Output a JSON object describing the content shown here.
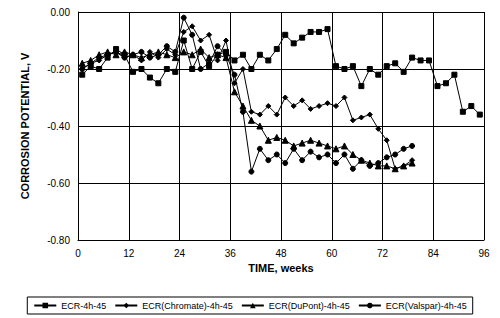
{
  "chart_data": {
    "type": "line",
    "x_label": "TIME, weeks",
    "y_label": "CORROSION POTENTIAL, V",
    "x": [
      1,
      3,
      5,
      7,
      9,
      11,
      13,
      15,
      17,
      19,
      21,
      23,
      25,
      27,
      29,
      31,
      33,
      35,
      37,
      39,
      41,
      43,
      45,
      47,
      49,
      51,
      53,
      55,
      57,
      59,
      61,
      63,
      65,
      67,
      69,
      71,
      73,
      75,
      77,
      79,
      81,
      83,
      85,
      87,
      89,
      91,
      93,
      95
    ],
    "series": [
      {
        "name": "ECR-4h-45",
        "color": "#000000",
        "marker": "square",
        "values": [
          -0.22,
          -0.19,
          -0.2,
          -0.16,
          -0.13,
          -0.15,
          -0.21,
          -0.2,
          -0.23,
          -0.25,
          -0.2,
          -0.21,
          -0.1,
          -0.2,
          -0.14,
          -0.19,
          -0.15,
          -0.14,
          -0.17,
          -0.15,
          -0.2,
          -0.15,
          -0.17,
          -0.13,
          -0.08,
          -0.11,
          -0.09,
          -0.07,
          -0.07,
          -0.06,
          -0.19,
          -0.2,
          -0.19,
          -0.26,
          -0.2,
          -0.22,
          -0.19,
          -0.18,
          -0.21,
          -0.16,
          -0.17,
          -0.17,
          -0.26,
          -0.25,
          -0.22,
          -0.35,
          -0.33,
          -0.36
        ]
      },
      {
        "name": "ECR(Chromate)-4h-45",
        "color": "#000000",
        "marker": "diamond",
        "values": [
          -0.2,
          -0.18,
          -0.17,
          -0.15,
          -0.14,
          -0.16,
          -0.15,
          -0.17,
          -0.14,
          -0.16,
          -0.13,
          -0.15,
          -0.07,
          -0.05,
          -0.1,
          -0.08,
          -0.17,
          -0.1,
          -0.25,
          -0.2,
          -0.35,
          -0.36,
          -0.33,
          -0.36,
          -0.3,
          -0.33,
          -0.31,
          -0.34,
          -0.33,
          -0.32,
          -0.33,
          -0.3,
          -0.38,
          -0.37,
          -0.36,
          -0.41,
          -0.45,
          -0.55,
          -0.54,
          -0.52,
          null,
          null,
          null,
          null,
          null,
          null,
          null,
          null
        ]
      },
      {
        "name": "ECR(DuPont)-4h-45",
        "color": "#000000",
        "marker": "triangle",
        "values": [
          -0.18,
          -0.17,
          -0.15,
          -0.14,
          -0.15,
          -0.14,
          -0.15,
          -0.16,
          -0.15,
          -0.14,
          -0.15,
          -0.16,
          -0.14,
          -0.15,
          -0.13,
          -0.16,
          -0.15,
          -0.16,
          -0.28,
          -0.33,
          -0.38,
          -0.4,
          -0.45,
          -0.44,
          -0.45,
          -0.47,
          -0.46,
          -0.45,
          -0.46,
          -0.47,
          -0.48,
          -0.47,
          -0.5,
          -0.52,
          -0.53,
          -0.54,
          -0.54,
          -0.55,
          -0.54,
          -0.53,
          null,
          null,
          null,
          null,
          null,
          null,
          null,
          null
        ]
      },
      {
        "name": "ECR(Valspar)-4h-45",
        "color": "#000000",
        "marker": "circle",
        "values": [
          -0.2,
          -0.18,
          -0.16,
          -0.15,
          -0.14,
          -0.16,
          -0.15,
          -0.14,
          -0.16,
          -0.15,
          -0.12,
          -0.14,
          -0.02,
          -0.08,
          -0.2,
          -0.18,
          -0.12,
          -0.15,
          -0.22,
          -0.35,
          -0.56,
          -0.48,
          -0.52,
          -0.5,
          -0.53,
          -0.48,
          -0.52,
          -0.49,
          -0.51,
          -0.5,
          -0.53,
          -0.5,
          -0.55,
          -0.52,
          -0.54,
          -0.53,
          -0.51,
          -0.5,
          -0.48,
          -0.47,
          null,
          null,
          null,
          null,
          null,
          null,
          null,
          null
        ]
      }
    ],
    "xlim": [
      0,
      96
    ],
    "xticks": [
      0,
      12,
      24,
      36,
      48,
      60,
      72,
      84,
      96
    ],
    "ylim": [
      -0.8,
      0
    ],
    "yticks": [
      {
        "value": -0.8,
        "label": "-0.80"
      },
      {
        "value": -0.6,
        "label": "-0.60"
      },
      {
        "value": -0.4,
        "label": "-0.40"
      },
      {
        "value": -0.2,
        "label": "-0.20"
      },
      {
        "value": 0,
        "label": "0.00"
      }
    ],
    "grid": true,
    "legend": "bottom"
  }
}
